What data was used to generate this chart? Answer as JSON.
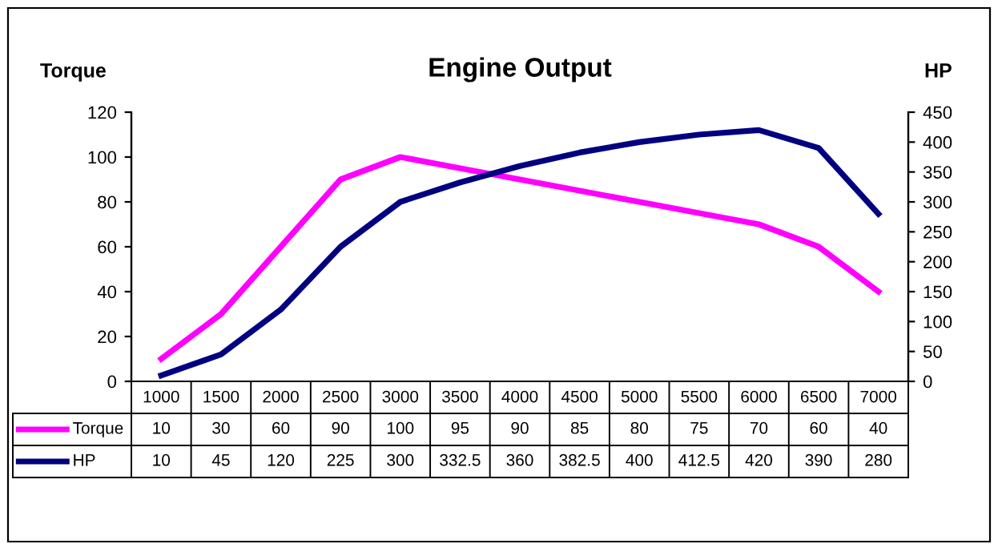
{
  "chart_data": {
    "type": "line",
    "title": "Engine Output",
    "ylabel": "Torque",
    "y2label": "HP",
    "categories": [
      "1000",
      "1500",
      "2000",
      "2500",
      "3000",
      "3500",
      "4000",
      "4500",
      "5000",
      "5500",
      "6000",
      "6500",
      "7000"
    ],
    "series": [
      {
        "name": "Torque",
        "color": "#ff00ff",
        "values": [
          10,
          30,
          60,
          90,
          100,
          95,
          90,
          85,
          80,
          75,
          70,
          60,
          40
        ]
      },
      {
        "name": "HP",
        "color": "#000080",
        "axis": "y2",
        "values": [
          10,
          45,
          120,
          225,
          300,
          332.5,
          360,
          382.5,
          400,
          412.5,
          420,
          390,
          280
        ]
      }
    ],
    "ylim": [
      0,
      120
    ],
    "yticks": [
      0,
      20,
      40,
      60,
      80,
      100,
      120
    ],
    "y2lim": [
      0,
      450
    ],
    "y2ticks": [
      0,
      50,
      100,
      150,
      200,
      250,
      300,
      350,
      400,
      450
    ],
    "data_labels": true,
    "legend": "bottom",
    "grid": false,
    "marker": "none",
    "line_style": "solid"
  }
}
